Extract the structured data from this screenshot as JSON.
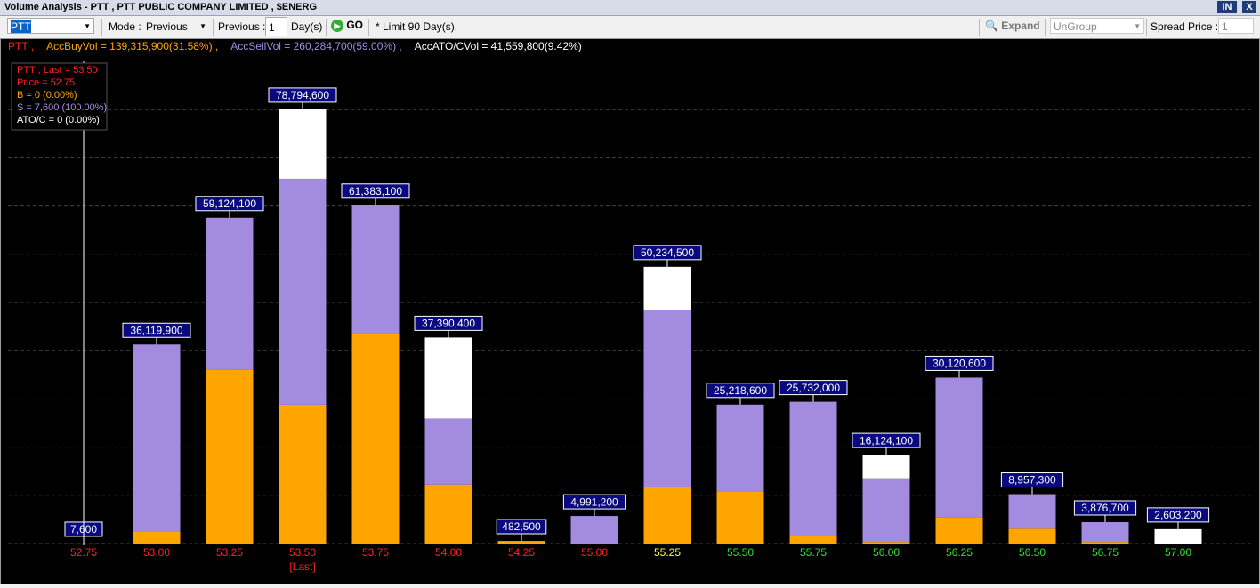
{
  "window": {
    "title": "Volume Analysis - PTT , PTT PUBLIC COMPANY LIMITED , $ENERG",
    "buttons": [
      "IN",
      "X"
    ]
  },
  "toolbar": {
    "symbol": "PTT",
    "mode_label": "Mode :",
    "mode": "Previous",
    "previous_label": "Previous :",
    "previous_value": "1",
    "days_label": "Day(s)",
    "go": "GO",
    "limit_note": "* Limit 90 Day(s).",
    "expand": "Expand",
    "group": "UnGroup",
    "spread_label": "Spread Price :",
    "spread_value": "1"
  },
  "chart_data": {
    "type": "stacked_bar",
    "summary": [
      {
        "text": "PTT ,",
        "color": "#ff2020"
      },
      {
        "text": "AccBuyVol = 139,315,900(31.58%) ,",
        "color": "#ffa500"
      },
      {
        "text": "AccSellVol = 260,284,700(59.00%) ,",
        "color": "#a38be0"
      },
      {
        "text": "AccATO/CVol = 41,559,800(9.42%)",
        "color": "#ffffff"
      }
    ],
    "tooltip": [
      {
        "text": "PTT , Last = 53.50",
        "color": "#ff2020"
      },
      {
        "text": "Price = 52.75",
        "color": "#ff2020"
      },
      {
        "text": "B = 0 (0.00%)",
        "color": "#ffa500"
      },
      {
        "text": "S = 7,600 (100.00%)",
        "color": "#a38be0"
      },
      {
        "text": "ATO/C = 0 (0.00%)",
        "color": "#ffffff"
      }
    ],
    "categories": [
      "52.75",
      "53.00",
      "53.25",
      "53.50",
      "53.75",
      "54.00",
      "54.25",
      "55.00",
      "55.25",
      "55.50",
      "55.75",
      "56.00",
      "56.25",
      "56.50",
      "56.75",
      "57.00"
    ],
    "category_colors": [
      "#ff2020",
      "#ff2020",
      "#ff2020",
      "#ff2020",
      "#ff2020",
      "#ff2020",
      "#ff2020",
      "#ff2020",
      "#ffff40",
      "#30e030",
      "#30e030",
      "#30e030",
      "#30e030",
      "#30e030",
      "#30e030",
      "#30e030"
    ],
    "category_sublabels": [
      null,
      null,
      null,
      "[Last]",
      null,
      null,
      null,
      null,
      null,
      null,
      null,
      null,
      null,
      null,
      null,
      null
    ],
    "series": [
      {
        "color": "#ffa500",
        "values": [
          0,
          2100000,
          31600000,
          25200000,
          38100000,
          10700000,
          400000,
          0,
          10300000,
          9500000,
          1300000,
          300000,
          4800000,
          2700000,
          300000,
          0
        ]
      },
      {
        "color": "#a38be0",
        "values": [
          7600,
          34019900,
          27524100,
          41000000,
          23283100,
          11990400,
          82500,
          4991200,
          32134500,
          15718600,
          24432000,
          11524100,
          25320600,
          6257300,
          3576700,
          0
        ]
      },
      {
        "color": "#ffffff",
        "values": [
          0,
          0,
          0,
          12594600,
          0,
          14700000,
          0,
          0,
          7800000,
          0,
          0,
          4300000,
          0,
          0,
          0,
          2603200
        ]
      }
    ],
    "totals": {
      "values": [
        7600,
        36119900,
        59124100,
        78794600,
        61383100,
        37390400,
        482500,
        4991200,
        50234500,
        25218600,
        25732000,
        16124100,
        30120600,
        8957300,
        3876700,
        2603200
      ],
      "value_labels": [
        "7,600",
        "36,119,900",
        "59,124,100",
        "78,794,600",
        "61,383,100",
        "37,390,400",
        "482,500",
        "4,991,200",
        "50,234,500",
        "25,218,600",
        "25,732,000",
        "16,124,100",
        "30,120,600",
        "8,957,300",
        "3,876,700",
        "2,603,200"
      ]
    },
    "ylim": [
      0,
      87500000
    ],
    "grid": true
  }
}
